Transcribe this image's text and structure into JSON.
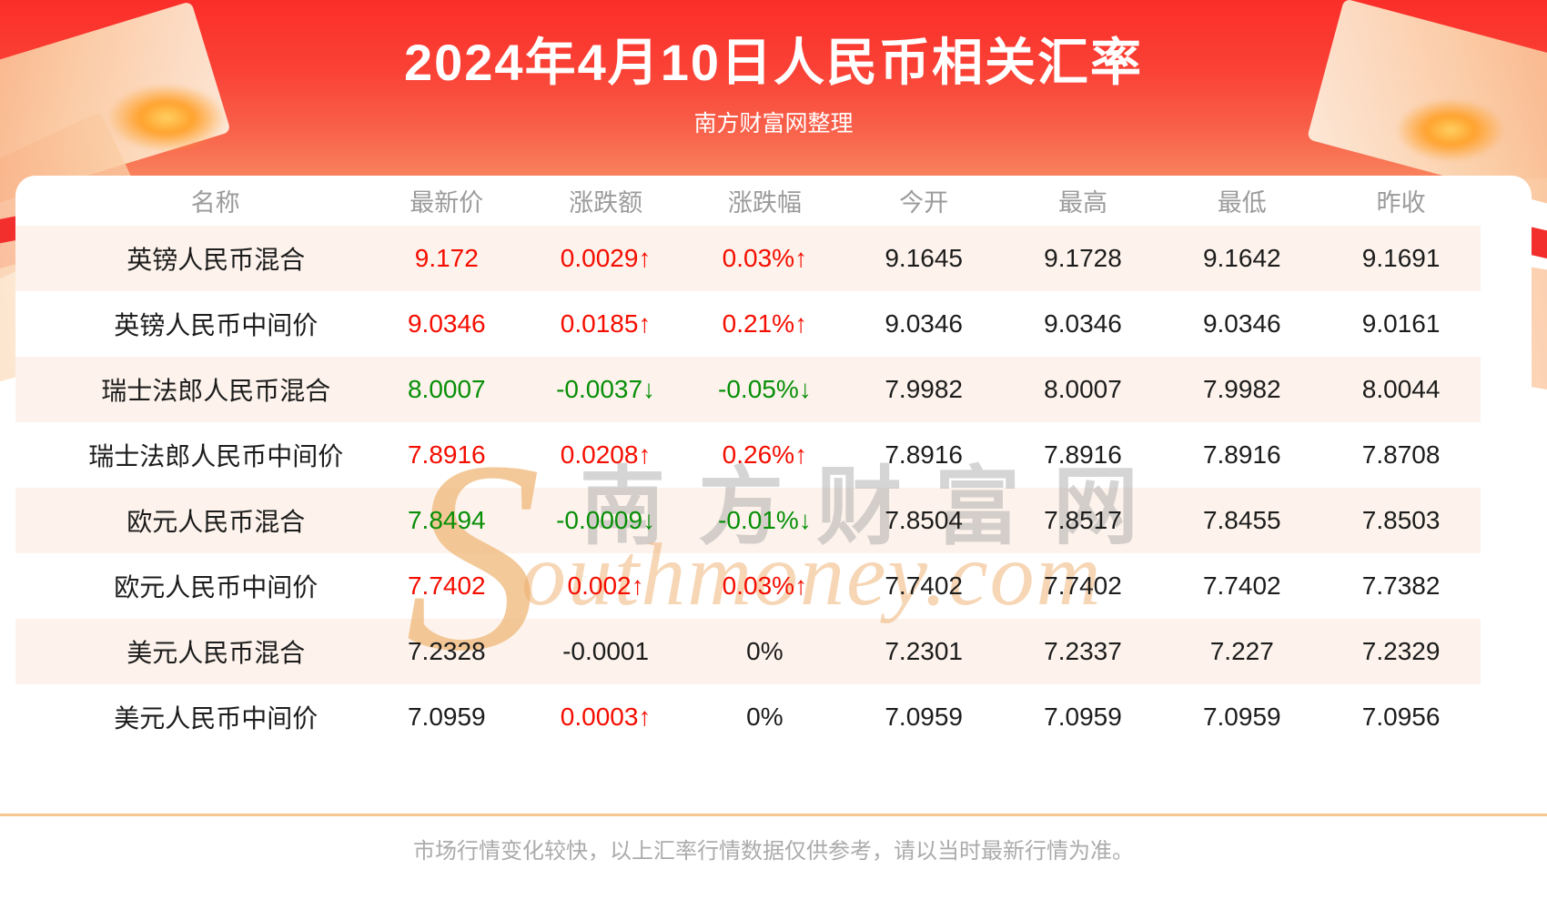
{
  "header": {
    "title": "2024年4月10日人民币相关汇率",
    "subtitle": "南方财富网整理"
  },
  "table": {
    "columns": [
      "名称",
      "最新价",
      "涨跌额",
      "涨跌幅",
      "今开",
      "最高",
      "最低",
      "昨收"
    ],
    "rows": [
      {
        "name": "英镑人民币混合",
        "latest": "9.172",
        "latest_dir": "red",
        "change": "0.0029↑",
        "change_dir": "red",
        "pct": "0.03%↑",
        "pct_dir": "red",
        "open": "9.1645",
        "high": "9.1728",
        "low": "9.1642",
        "prev_close": "9.1691"
      },
      {
        "name": "英镑人民币中间价",
        "latest": "9.0346",
        "latest_dir": "red",
        "change": "0.0185↑",
        "change_dir": "red",
        "pct": "0.21%↑",
        "pct_dir": "red",
        "open": "9.0346",
        "high": "9.0346",
        "low": "9.0346",
        "prev_close": "9.0161"
      },
      {
        "name": "瑞士法郎人民币混合",
        "latest": "8.0007",
        "latest_dir": "green",
        "change": "-0.0037↓",
        "change_dir": "green",
        "pct": "-0.05%↓",
        "pct_dir": "green",
        "open": "7.9982",
        "high": "8.0007",
        "low": "7.9982",
        "prev_close": "8.0044"
      },
      {
        "name": "瑞士法郎人民币中间价",
        "latest": "7.8916",
        "latest_dir": "red",
        "change": "0.0208↑",
        "change_dir": "red",
        "pct": "0.26%↑",
        "pct_dir": "red",
        "open": "7.8916",
        "high": "7.8916",
        "low": "7.8916",
        "prev_close": "7.8708"
      },
      {
        "name": "欧元人民币混合",
        "latest": "7.8494",
        "latest_dir": "green",
        "change": "-0.0009↓",
        "change_dir": "green",
        "pct": "-0.01%↓",
        "pct_dir": "green",
        "open": "7.8504",
        "high": "7.8517",
        "low": "7.8455",
        "prev_close": "7.8503"
      },
      {
        "name": "欧元人民币中间价",
        "latest": "7.7402",
        "latest_dir": "red",
        "change": "0.002↑",
        "change_dir": "red",
        "pct": "0.03%↑",
        "pct_dir": "red",
        "open": "7.7402",
        "high": "7.7402",
        "low": "7.7402",
        "prev_close": "7.7382"
      },
      {
        "name": "美元人民币混合",
        "latest": "7.2328",
        "latest_dir": "black",
        "change": "-0.0001",
        "change_dir": "black",
        "pct": "0%",
        "pct_dir": "black",
        "open": "7.2301",
        "high": "7.2337",
        "low": "7.227",
        "prev_close": "7.2329"
      },
      {
        "name": "美元人民币中间价",
        "latest": "7.0959",
        "latest_dir": "black",
        "change": "0.0003↑",
        "change_dir": "red",
        "pct": "0%",
        "pct_dir": "black",
        "open": "7.0959",
        "high": "7.0959",
        "low": "7.0959",
        "prev_close": "7.0956"
      }
    ]
  },
  "chart_data": {
    "type": "table",
    "title": "2024年4月10日人民币相关汇率",
    "subtitle": "南方财富网整理",
    "columns": [
      "名称",
      "最新价",
      "涨跌额",
      "涨跌幅",
      "今开",
      "最高",
      "最低",
      "昨收"
    ],
    "rows": [
      [
        "英镑人民币混合",
        "9.172",
        "0.0029↑",
        "0.03%↑",
        "9.1645",
        "9.1728",
        "9.1642",
        "9.1691"
      ],
      [
        "英镑人民币中间价",
        "9.0346",
        "0.0185↑",
        "0.21%↑",
        "9.0346",
        "9.0346",
        "9.0346",
        "9.0161"
      ],
      [
        "瑞士法郎人民币混合",
        "8.0007",
        "-0.0037↓",
        "-0.05%↓",
        "7.9982",
        "8.0007",
        "7.9982",
        "8.0044"
      ],
      [
        "瑞士法郎人民币中间价",
        "7.8916",
        "0.0208↑",
        "0.26%↑",
        "7.8916",
        "7.8916",
        "7.8916",
        "7.8708"
      ],
      [
        "欧元人民币混合",
        "7.8494",
        "-0.0009↓",
        "-0.01%↓",
        "7.8504",
        "7.8517",
        "7.8455",
        "7.8503"
      ],
      [
        "欧元人民币中间价",
        "7.7402",
        "0.002↑",
        "0.03%↑",
        "7.7402",
        "7.7402",
        "7.7402",
        "7.7382"
      ],
      [
        "美元人民币混合",
        "7.2328",
        "-0.0001",
        "0%",
        "7.2301",
        "7.2337",
        "7.227",
        "7.2329"
      ],
      [
        "美元人民币中间价",
        "7.0959",
        "0.0003↑",
        "0%",
        "7.0959",
        "7.0959",
        "7.0959",
        "7.0956"
      ]
    ]
  },
  "watermark": {
    "swoosh": "S",
    "cn": "南方财富网",
    "en": "outhmoney.com"
  },
  "footer": {
    "note": "市场行情变化较快，以上汇率行情数据仅供参考，请以当时最新行情为准。"
  },
  "colors": {
    "up": "#f50d00",
    "down": "#078f07",
    "neutral": "#1c1c1c",
    "banner_red_top": "#fb2e29",
    "banner_red_bottom": "#f9835c",
    "row_alt_bg": "#fdf3ec",
    "divider": "#f6c890"
  }
}
